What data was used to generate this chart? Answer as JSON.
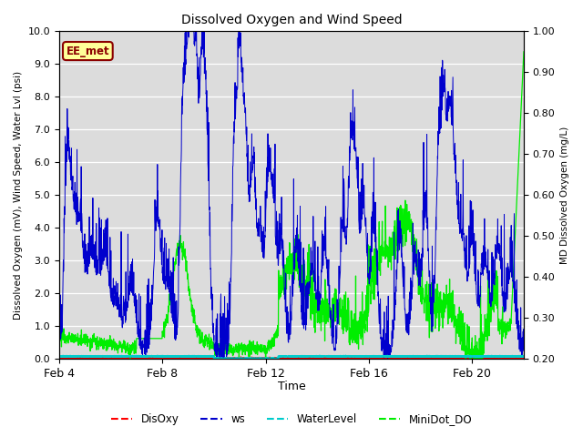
{
  "title": "Dissolved Oxygen and Wind Speed",
  "ylabel_left": "Dissolved Oxygen (mV), Wind Speed, Water Lvl (psi)",
  "ylabel_right": "MD Dissolved Oxygen (mg/L)",
  "xlabel": "Time",
  "ylim_left": [
    0.0,
    10.0
  ],
  "ylim_right": [
    0.2,
    1.0
  ],
  "yticks_left": [
    0.0,
    1.0,
    2.0,
    3.0,
    4.0,
    5.0,
    6.0,
    7.0,
    8.0,
    9.0,
    10.0
  ],
  "yticks_right": [
    0.2,
    0.3,
    0.4,
    0.5,
    0.6,
    0.7,
    0.8,
    0.9,
    1.0
  ],
  "xtick_labels": [
    "Feb 4",
    "Feb 8",
    "Feb 12",
    "Feb 16",
    "Feb 20"
  ],
  "xtick_positions": [
    0,
    4,
    8,
    12,
    16
  ],
  "xlim": [
    0,
    18
  ],
  "annotation_text": "EE_met",
  "annotation_color": "#8B0000",
  "annotation_bg": "#FFFF99",
  "bg_color": "#DCDCDC",
  "line_colors": {
    "DisOxy": "#FF0000",
    "ws": "#0000CD",
    "WaterLevel": "#00CCCC",
    "MiniDot_DO": "#00EE00"
  },
  "figsize": [
    6.4,
    4.8
  ],
  "dpi": 100
}
